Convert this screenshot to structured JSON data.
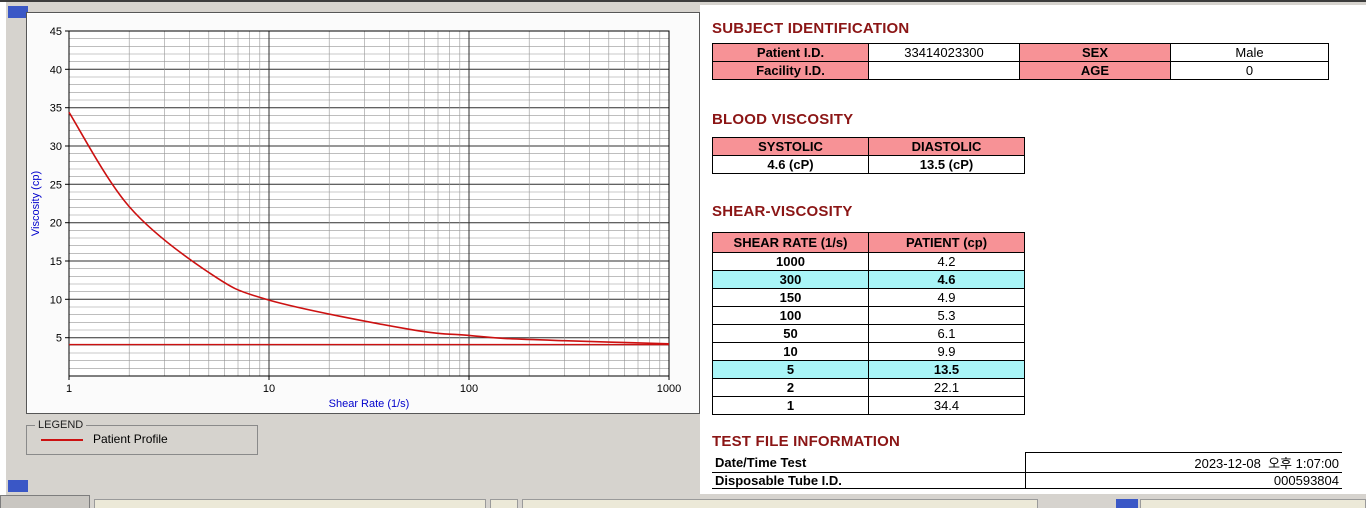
{
  "colors": {
    "accent_heading": "#8b1515",
    "table_header_pink": "#f79296",
    "highlight_cyan": "#a9f5f7",
    "series_red": "#cc1111",
    "axis_label_blue": "#0000cc",
    "window_bg": "#d6d3ce",
    "fragment_blue": "#3a57c6"
  },
  "subject_identification": {
    "title": "SUBJECT IDENTIFICATION",
    "rows": [
      {
        "label1": "Patient I.D.",
        "value1": "33414023300",
        "label2": "SEX",
        "value2": "Male"
      },
      {
        "label1": "Facility I.D.",
        "value1": "",
        "label2": "AGE",
        "value2": "0"
      }
    ]
  },
  "blood_viscosity": {
    "title": "BLOOD VISCOSITY",
    "headers": [
      "SYSTOLIC",
      "DIASTOLIC"
    ],
    "values": [
      "4.6 (cP)",
      "13.5 (cP)"
    ]
  },
  "shear_viscosity": {
    "title": "SHEAR-VISCOSITY",
    "headers": [
      "SHEAR RATE (1/s)",
      "PATIENT (cp)"
    ],
    "rows": [
      {
        "rate": "1000",
        "patient": "4.2",
        "highlight": false
      },
      {
        "rate": "300",
        "patient": "4.6",
        "highlight": true
      },
      {
        "rate": "150",
        "patient": "4.9",
        "highlight": false
      },
      {
        "rate": "100",
        "patient": "5.3",
        "highlight": false
      },
      {
        "rate": "50",
        "patient": "6.1",
        "highlight": false
      },
      {
        "rate": "10",
        "patient": "9.9",
        "highlight": false
      },
      {
        "rate": "5",
        "patient": "13.5",
        "highlight": true
      },
      {
        "rate": "2",
        "patient": "22.1",
        "highlight": false
      },
      {
        "rate": "1",
        "patient": "34.4",
        "highlight": false
      }
    ]
  },
  "test_file_information": {
    "title": "TEST FILE INFORMATION",
    "rows": [
      {
        "label": "Date/Time Test",
        "value": "2023-12-08  오후 1:07:00"
      },
      {
        "label": "Disposable Tube I.D.",
        "value": "000593804"
      }
    ]
  },
  "legend": {
    "box_label": "LEGEND",
    "series_label": "Patient Profile"
  },
  "chart_data": {
    "type": "line",
    "title": "",
    "xlabel": "Shear Rate (1/s)",
    "ylabel": "Viscosity (cp)",
    "x_scale": "log",
    "xlim": [
      1,
      1000
    ],
    "ylim": [
      0,
      45
    ],
    "x_ticks": [
      1,
      10,
      100,
      1000
    ],
    "y_ticks": [
      5,
      10,
      15,
      20,
      25,
      30,
      35,
      40,
      45
    ],
    "grid": "major+minor",
    "legend_position": "below-left",
    "series": [
      {
        "name": "Patient Profile",
        "color": "#cc1111",
        "x": [
          1,
          2,
          5,
          10,
          50,
          100,
          150,
          300,
          1000
        ],
        "y": [
          34.4,
          22.1,
          13.5,
          9.9,
          6.1,
          5.3,
          4.9,
          4.6,
          4.2
        ]
      }
    ],
    "reference_line": {
      "y": 4.1,
      "color": "#cc1111"
    }
  }
}
